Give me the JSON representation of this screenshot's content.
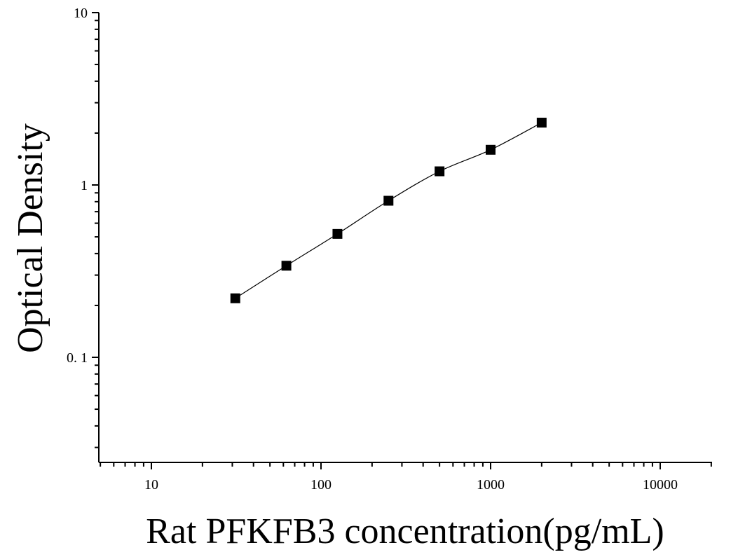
{
  "chart_data": {
    "type": "scatter",
    "title": "",
    "xlabel": "Rat PFKFB3 concentration(pg/mL)",
    "ylabel": "Optical Density",
    "xscale": "log",
    "yscale": "log",
    "xlim": [
      5,
      30000
    ],
    "ylim": [
      0.03,
      10
    ],
    "x_ticks": [
      10,
      100,
      1000,
      10000
    ],
    "x_tick_labels": [
      "10",
      "100",
      "1000",
      "10000"
    ],
    "y_ticks": [
      0.1,
      1,
      10
    ],
    "y_tick_labels": [
      "0. 1",
      "1",
      "10"
    ],
    "grid": false,
    "legend": false,
    "marker": "square",
    "fit_curve": true,
    "series": [
      {
        "x": [
          31.25,
          62.5,
          125,
          250,
          500,
          1000,
          2000
        ],
        "y": [
          0.22,
          0.34,
          0.52,
          0.81,
          1.2,
          1.6,
          2.3
        ]
      }
    ]
  }
}
